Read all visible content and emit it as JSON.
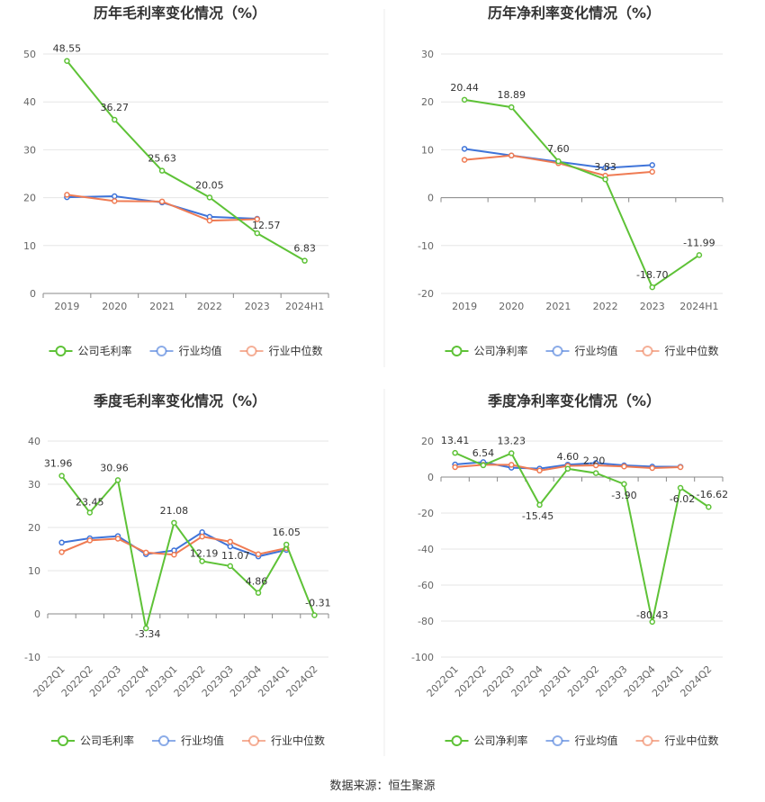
{
  "colors": {
    "company": "#5ec237",
    "avg": "#3f74d9",
    "median": "#ef7b53",
    "grid": "#e6e6e6",
    "axis": "#888888"
  },
  "legend_labels": {
    "gross": [
      "公司毛利率",
      "行业均值",
      "行业中位数"
    ],
    "net": [
      "公司净利率",
      "行业均值",
      "行业中位数"
    ]
  },
  "source_text": "数据来源：恒生聚源",
  "chart_data": [
    {
      "type": "line",
      "title": "历年毛利率变化情况（%）",
      "categories": [
        "2019",
        "2020",
        "2021",
        "2022",
        "2023",
        "2024H1"
      ],
      "yticks": [
        0,
        10,
        20,
        30,
        40,
        50
      ],
      "ylim": [
        0,
        50
      ],
      "legend": "bottom",
      "series": [
        {
          "name": "公司毛利率",
          "values": [
            48.55,
            36.27,
            25.63,
            20.05,
            12.57,
            6.83
          ],
          "labels": [
            "48.55",
            "36.27",
            "25.63",
            "20.05",
            "12.57",
            "6.83"
          ]
        },
        {
          "name": "行业均值",
          "values": [
            20.1,
            20.3,
            19.0,
            16.0,
            15.6,
            null
          ]
        },
        {
          "name": "行业中位数",
          "values": [
            20.6,
            19.3,
            19.2,
            15.2,
            15.5,
            null
          ]
        }
      ]
    },
    {
      "type": "line",
      "title": "历年净利率变化情况（%）",
      "categories": [
        "2019",
        "2020",
        "2021",
        "2022",
        "2023",
        "2024H1"
      ],
      "yticks": [
        -20,
        -10,
        0,
        10,
        20,
        30
      ],
      "ylim": [
        -20,
        30
      ],
      "legend": "bottom",
      "series": [
        {
          "name": "公司净利率",
          "values": [
            20.44,
            18.89,
            7.6,
            3.83,
            -18.7,
            -11.99
          ],
          "labels": [
            "20.44",
            "18.89",
            "7.60",
            "3.83",
            "-18.70",
            "-11.99"
          ]
        },
        {
          "name": "行业均值",
          "values": [
            10.2,
            8.8,
            7.5,
            6.2,
            6.8,
            null
          ]
        },
        {
          "name": "行业中位数",
          "values": [
            7.9,
            8.8,
            7.2,
            4.6,
            5.4,
            null
          ]
        }
      ]
    },
    {
      "type": "line",
      "title": "季度毛利率变化情况（%）",
      "categories": [
        "2022Q1",
        "2022Q2",
        "2022Q3",
        "2022Q4",
        "2023Q1",
        "2023Q2",
        "2023Q3",
        "2023Q4",
        "2024Q1",
        "2024Q2"
      ],
      "yticks": [
        -10,
        0,
        10,
        20,
        30,
        40
      ],
      "ylim": [
        -10,
        40
      ],
      "legend": "bottom",
      "series": [
        {
          "name": "公司毛利率",
          "values": [
            31.96,
            23.45,
            30.96,
            -3.34,
            21.08,
            12.19,
            11.07,
            4.86,
            16.05,
            -0.31
          ],
          "labels": [
            "31.96",
            "23.45",
            "30.96",
            "-3.34",
            "21.08",
            "12.19",
            "11.07",
            "4.86",
            "16.05",
            "-0.31"
          ]
        },
        {
          "name": "行业均值",
          "values": [
            16.5,
            17.5,
            18.0,
            13.8,
            14.7,
            18.9,
            15.6,
            13.3,
            14.8,
            null
          ]
        },
        {
          "name": "行业中位数",
          "values": [
            14.3,
            17.0,
            17.4,
            14.2,
            13.7,
            17.9,
            16.7,
            13.8,
            15.2,
            null
          ]
        }
      ]
    },
    {
      "type": "line",
      "title": "季度净利率变化情况（%）",
      "categories": [
        "2022Q1",
        "2022Q2",
        "2022Q3",
        "2022Q4",
        "2023Q1",
        "2023Q2",
        "2023Q3",
        "2023Q4",
        "2024Q1",
        "2024Q2"
      ],
      "yticks": [
        -100,
        -80,
        -60,
        -40,
        -20,
        0,
        20
      ],
      "ylim": [
        -100,
        20
      ],
      "legend": "bottom",
      "series": [
        {
          "name": "公司净利率",
          "values": [
            13.41,
            6.54,
            13.23,
            -15.45,
            4.6,
            2.2,
            -3.9,
            -80.43,
            -6.02,
            -16.62
          ],
          "labels": [
            "13.41",
            "6.54",
            "13.23",
            "-15.45",
            "4.60",
            "2.20",
            "-3.90",
            "-80.43",
            "-6.02",
            "-16.62"
          ]
        },
        {
          "name": "行业均值",
          "values": [
            7.0,
            8.3,
            5.2,
            4.7,
            6.9,
            7.8,
            6.5,
            5.8,
            5.7,
            null
          ]
        },
        {
          "name": "行业中位数",
          "values": [
            5.5,
            6.8,
            6.8,
            3.6,
            6.2,
            6.5,
            5.9,
            5.0,
            5.5,
            null
          ]
        }
      ]
    }
  ]
}
